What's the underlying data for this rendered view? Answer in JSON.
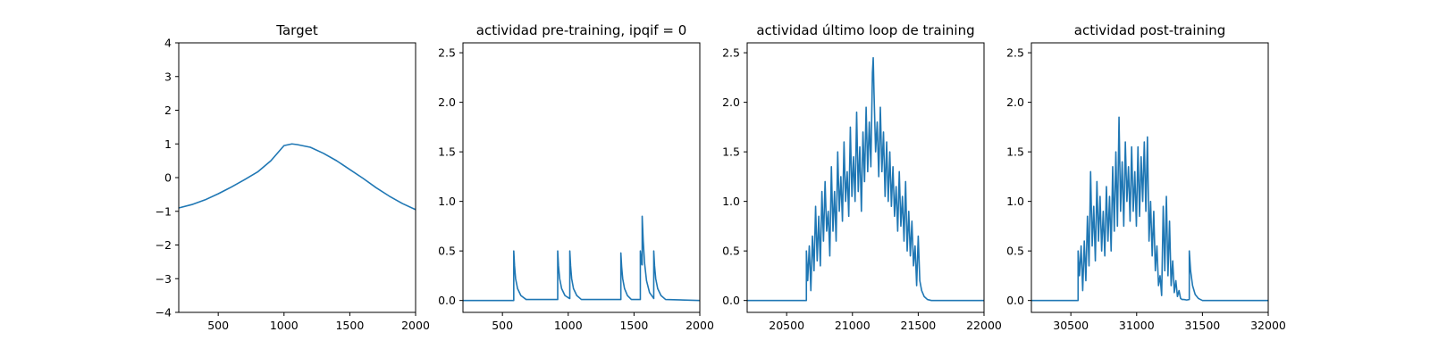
{
  "figure": {
    "series_color": "#1f77b4"
  },
  "chart_data": [
    {
      "type": "line",
      "title": "Target",
      "xlabel": "",
      "ylabel": "",
      "xlim": [
        200,
        2000
      ],
      "ylim": [
        -4,
        4
      ],
      "xticks": [
        500,
        1000,
        1500,
        2000
      ],
      "yticks": [
        -4,
        -3,
        -2,
        -1,
        0,
        1,
        2,
        3,
        4
      ],
      "grid": false,
      "series": [
        {
          "x": [
            200,
            300,
            400,
            500,
            600,
            700,
            800,
            900,
            1000,
            1060,
            1100,
            1200,
            1300,
            1400,
            1500,
            1600,
            1700,
            1800,
            1900,
            2000
          ],
          "y": [
            -0.9,
            -0.8,
            -0.66,
            -0.48,
            -0.28,
            -0.06,
            0.17,
            0.5,
            0.95,
            1.0,
            0.98,
            0.9,
            0.72,
            0.5,
            0.24,
            -0.02,
            -0.3,
            -0.55,
            -0.77,
            -0.95
          ]
        }
      ]
    },
    {
      "type": "line",
      "title": "actividad pre-training, ipqif = 0",
      "xlabel": "",
      "ylabel": "",
      "xlim": [
        200,
        2000
      ],
      "ylim": [
        -0.12,
        2.6
      ],
      "xticks": [
        500,
        1000,
        1500,
        2000
      ],
      "yticks": [
        0.0,
        0.5,
        1.0,
        1.5,
        2.0,
        2.5
      ],
      "grid": false,
      "series": [
        {
          "x": [
            200,
            586,
            586,
            592,
            600,
            615,
            640,
            680,
            920,
            920,
            926,
            935,
            950,
            975,
            1010,
            1012,
            1012,
            1018,
            1026,
            1040,
            1065,
            1100,
            1400,
            1400,
            1406,
            1414,
            1428,
            1450,
            1480,
            1548,
            1548,
            1560,
            1562,
            1562,
            1570,
            1580,
            1595,
            1618,
            1650,
            1650,
            1656,
            1665,
            1680,
            1705,
            1740,
            2000
          ],
          "y": [
            0,
            0,
            0.5,
            0.35,
            0.22,
            0.12,
            0.05,
            0.01,
            0.01,
            0.5,
            0.35,
            0.22,
            0.12,
            0.05,
            0.02,
            0.02,
            0.5,
            0.35,
            0.22,
            0.12,
            0.05,
            0.01,
            0.01,
            0.48,
            0.34,
            0.22,
            0.12,
            0.05,
            0.01,
            0.01,
            0.5,
            0.36,
            0.36,
            0.85,
            0.6,
            0.38,
            0.2,
            0.08,
            0.02,
            0.5,
            0.35,
            0.22,
            0.12,
            0.05,
            0.01,
            0
          ]
        }
      ]
    },
    {
      "type": "line",
      "title": "actividad último loop de training",
      "xlabel": "",
      "ylabel": "",
      "xlim": [
        20200,
        22000
      ],
      "ylim": [
        -0.12,
        2.6
      ],
      "xticks": [
        20500,
        21000,
        21500,
        22000
      ],
      "yticks": [
        0.0,
        0.5,
        1.0,
        1.5,
        2.0,
        2.5
      ],
      "grid": false,
      "series": [
        {
          "x": [
            20200,
            20650,
            20650,
            20660,
            20672,
            20684,
            20696,
            20708,
            20720,
            20732,
            20744,
            20756,
            20768,
            20780,
            20792,
            20804,
            20816,
            20828,
            20840,
            20852,
            20864,
            20876,
            20888,
            20900,
            20912,
            20924,
            20936,
            20948,
            20960,
            20972,
            20984,
            20996,
            21008,
            21020,
            21032,
            21044,
            21056,
            21068,
            21080,
            21092,
            21104,
            21116,
            21128,
            21140,
            21152,
            21158,
            21164,
            21176,
            21188,
            21200,
            21212,
            21224,
            21236,
            21248,
            21260,
            21272,
            21284,
            21296,
            21308,
            21320,
            21332,
            21344,
            21356,
            21368,
            21380,
            21392,
            21404,
            21416,
            21428,
            21440,
            21452,
            21464,
            21476,
            21488,
            21500,
            21512,
            21526,
            21545,
            21570,
            21600,
            22000
          ],
          "y": [
            0,
            0,
            0.5,
            0.2,
            0.55,
            0.1,
            0.65,
            0.3,
            0.95,
            0.4,
            0.85,
            0.35,
            1.1,
            0.6,
            1.2,
            0.7,
            0.9,
            0.45,
            1.35,
            0.7,
            1.1,
            0.6,
            1.5,
            0.9,
            1.25,
            0.8,
            1.6,
            1.0,
            1.3,
            0.85,
            1.75,
            1.05,
            1.45,
            1.0,
            1.9,
            1.1,
            1.55,
            0.9,
            1.7,
            1.2,
            1.95,
            1.3,
            1.8,
            1.35,
            2.3,
            2.45,
            2.1,
            1.5,
            1.8,
            1.25,
            1.95,
            1.3,
            1.7,
            1.05,
            1.6,
            1.0,
            1.5,
            0.95,
            1.35,
            0.85,
            1.15,
            0.7,
            1.3,
            0.75,
            1.05,
            0.6,
            1.2,
            0.5,
            0.9,
            0.45,
            0.8,
            0.35,
            0.55,
            0.15,
            0.65,
            0.2,
            0.1,
            0.04,
            0.01,
            0,
            0
          ]
        }
      ]
    },
    {
      "type": "line",
      "title": "actividad post-training",
      "xlabel": "",
      "ylabel": "",
      "xlim": [
        30200,
        32000
      ],
      "ylim": [
        -0.12,
        2.6
      ],
      "xticks": [
        30500,
        31000,
        31500,
        32000
      ],
      "yticks": [
        0.0,
        0.5,
        1.0,
        1.5,
        2.0,
        2.5
      ],
      "grid": false,
      "series": [
        {
          "x": [
            30200,
            30555,
            30555,
            30566,
            30578,
            30590,
            30602,
            30614,
            30626,
            30638,
            30650,
            30662,
            30674,
            30686,
            30698,
            30710,
            30722,
            30734,
            30746,
            30758,
            30770,
            30782,
            30794,
            30806,
            30818,
            30830,
            30842,
            30854,
            30866,
            30878,
            30890,
            30902,
            30914,
            30926,
            30938,
            30950,
            30962,
            30974,
            30986,
            30998,
            31010,
            31022,
            31034,
            31046,
            31058,
            31070,
            31082,
            31094,
            31106,
            31118,
            31130,
            31142,
            31154,
            31166,
            31178,
            31190,
            31202,
            31214,
            31226,
            31238,
            31250,
            31262,
            31274,
            31286,
            31298,
            31310,
            31322,
            31334,
            31346,
            31360,
            31380,
            31400,
            31400,
            31410,
            31425,
            31445,
            31470,
            31500,
            32000
          ],
          "y": [
            0,
            0,
            0.5,
            0.25,
            0.55,
            0.1,
            0.6,
            0.2,
            0.85,
            0.35,
            1.3,
            0.55,
            0.95,
            0.4,
            1.2,
            0.6,
            1.05,
            0.5,
            0.9,
            0.45,
            1.15,
            0.6,
            1.05,
            0.5,
            1.35,
            0.7,
            1.5,
            0.75,
            1.85,
            0.9,
            1.4,
            0.75,
            1.6,
            1.0,
            1.35,
            0.8,
            1.55,
            0.9,
            1.3,
            0.75,
            1.55,
            0.85,
            1.45,
            1.0,
            1.6,
            0.9,
            1.65,
            0.6,
            1.0,
            0.45,
            0.9,
            0.3,
            0.55,
            0.15,
            0.25,
            0.05,
            0.95,
            0.3,
            1.05,
            0.25,
            0.8,
            0.15,
            0.4,
            0.08,
            0.2,
            0.04,
            0.1,
            0.02,
            0.01,
            0.01,
            0.005,
            0.01,
            0.5,
            0.3,
            0.15,
            0.06,
            0.02,
            0,
            0
          ]
        }
      ]
    }
  ]
}
